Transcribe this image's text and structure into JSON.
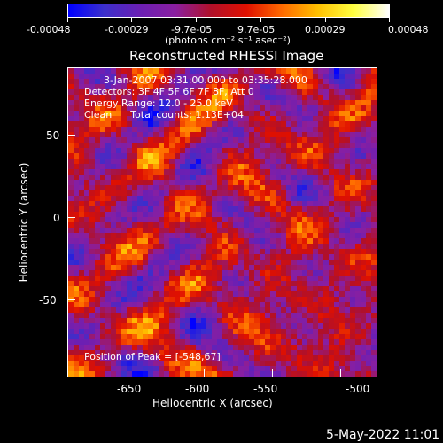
{
  "colorbar": {
    "tick_labels": [
      "-0.00048",
      "-0.00029",
      "-9.7e-05",
      "9.7e-05",
      "0.00029",
      "0.00048"
    ],
    "units_label": "(photons cm⁻² s⁻¹ asec⁻²)"
  },
  "title": "Reconstructed RHESSI Image",
  "info": {
    "time_range": "3-Jan-2007 03:31:00.000 to 03:35:28.000",
    "detectors": "Detectors: 3F 4F 5F 6F 7F 8F, Att 0",
    "energy_range": "Energy Range: 12.0 - 25.0 keV",
    "method": "Clean      Total counts: 1.13E+04"
  },
  "peak_label": "Position of Peak = [-548,67]",
  "axes": {
    "xlabel": "Heliocentric X (arcsec)",
    "ylabel": "Heliocentric Y (arcsec)",
    "x_ticks": [
      "-650",
      "-600",
      "-550",
      "-500"
    ],
    "y_ticks": [
      "50",
      "0",
      "-50"
    ]
  },
  "footer_date": "5-May-2022 11:01",
  "colors": {
    "background": "#000000",
    "colormap": [
      "#0000ff",
      "#3b2fcc",
      "#6a1fb4",
      "#8a1fa0",
      "#b0102a",
      "#e01000",
      "#ff6a00",
      "#ffc000",
      "#ffff40",
      "#ffffff"
    ]
  }
}
